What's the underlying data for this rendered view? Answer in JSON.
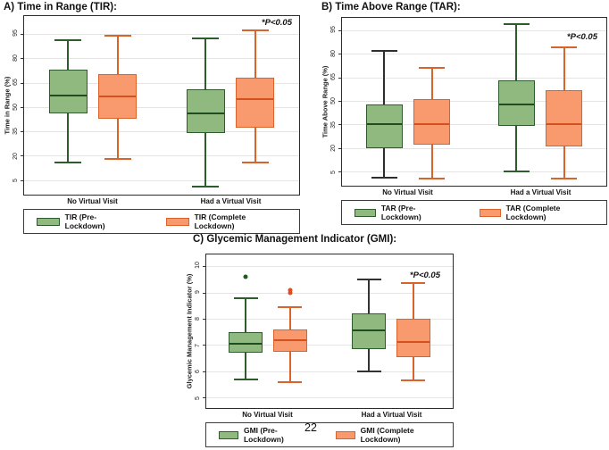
{
  "page_number": "22",
  "chart_data": [
    {
      "type": "box",
      "title": "A) Time in Range (TIR):",
      "ylabel": "Time in Range (%)",
      "ylim": [
        -4,
        106
      ],
      "yticks": [
        95,
        80,
        65,
        50,
        35,
        20,
        5
      ],
      "grid": true,
      "annotation": "*P<0.05",
      "legend_position": "bottom",
      "categories": [
        "No Virtual Visit",
        "Had a Virtual Visit"
      ],
      "series": [
        {
          "name": "TIR (Pre-Lockdown)",
          "fill": "#8FB97F",
          "border": "#2E5C2C",
          "median_color": "#1F4D1F",
          "outlier_color": "#1E5B1E",
          "boxes": [
            {
              "low": 16,
              "q1": 46,
              "median": 57,
              "q3": 73,
              "high": 91
            },
            {
              "low": 1,
              "q1": 34,
              "median": 46,
              "q3": 61,
              "high": 92
            }
          ]
        },
        {
          "name": "TIR (Complete Lockdown)",
          "fill": "#F89A6E",
          "border": "#D9632B",
          "median_color": "#D4511E",
          "outlier_color": "#E8491D",
          "boxes": [
            {
              "low": 18,
              "q1": 43,
              "median": 56.5,
              "q3": 70,
              "high": 94
            },
            {
              "low": 16,
              "q1": 37,
              "median": 55,
              "q3": 68,
              "high": 97
            }
          ]
        }
      ]
    },
    {
      "type": "box",
      "title": "B) Time Above Range (TAR):",
      "ylabel": "Time Above Range (%)",
      "ylim": [
        -4,
        103
      ],
      "yticks": [
        95,
        80,
        65,
        50,
        35,
        20,
        5
      ],
      "grid": true,
      "annotation": "*P<0.05",
      "legend_position": "bottom",
      "categories": [
        "No Virtual Visit",
        "Had a Virtual Visit"
      ],
      "series": [
        {
          "name": "TAR (Pre-Lockdown)",
          "fill": "#8FB97F",
          "border": "#2E5C2C",
          "median_color": "#1F4D1F",
          "outlier_color": "#1E5B1E",
          "boxes": [
            {
              "low": 1,
              "q1": 20,
              "median": 35,
              "q3": 48,
              "high": 82,
              "whisker": "#2e2e2e"
            },
            {
              "low": 5,
              "q1": 34,
              "median": 48,
              "q3": 63,
              "high": 99
            }
          ]
        },
        {
          "name": "TAR (Complete Lockdown)",
          "fill": "#F89A6E",
          "border": "#D9632B",
          "median_color": "#D4511E",
          "outlier_color": "#E8491D",
          "boxes": [
            {
              "low": 0.5,
              "q1": 22,
              "median": 35,
              "q3": 51,
              "high": 71
            },
            {
              "low": 0.5,
              "q1": 21,
              "median": 35,
              "q3": 57,
              "high": 84
            }
          ]
        }
      ]
    },
    {
      "type": "box",
      "title": "C) Glycemic Management Indicator (GMI):",
      "ylabel": "Glycemic Management Indicator (%)",
      "ylim": [
        4.6,
        10.45
      ],
      "yticks": [
        10,
        9,
        8,
        7,
        6,
        5
      ],
      "grid": true,
      "annotation": "*P<0.05",
      "legend_position": "bottom",
      "categories": [
        "No Virtual Visit",
        "Had a Virtual Visit"
      ],
      "series": [
        {
          "name": "GMI (Pre-Lockdown)",
          "fill": "#8FB97F",
          "border": "#2E5C2C",
          "median_color": "#1F4D1F",
          "outlier_color": "#1E5B1E",
          "boxes": [
            {
              "low": 5.7,
              "q1": 6.7,
              "median": 7.05,
              "q3": 7.5,
              "high": 8.8,
              "outliers": [
                9.6
              ]
            },
            {
              "low": 6.0,
              "q1": 6.85,
              "median": 7.55,
              "q3": 8.2,
              "high": 9.5,
              "whisker": "#333333"
            }
          ]
        },
        {
          "name": "GMI (Complete Lockdown)",
          "fill": "#F89A6E",
          "border": "#D9632B",
          "median_color": "#D4511E",
          "outlier_color": "#E8491D",
          "boxes": [
            {
              "low": 5.6,
              "q1": 6.75,
              "median": 7.2,
              "q3": 7.6,
              "high": 8.45,
              "outliers": [
                9.0,
                9.1
              ]
            },
            {
              "low": 5.65,
              "q1": 6.55,
              "median": 7.1,
              "q3": 8.0,
              "high": 9.35
            }
          ]
        }
      ]
    }
  ]
}
